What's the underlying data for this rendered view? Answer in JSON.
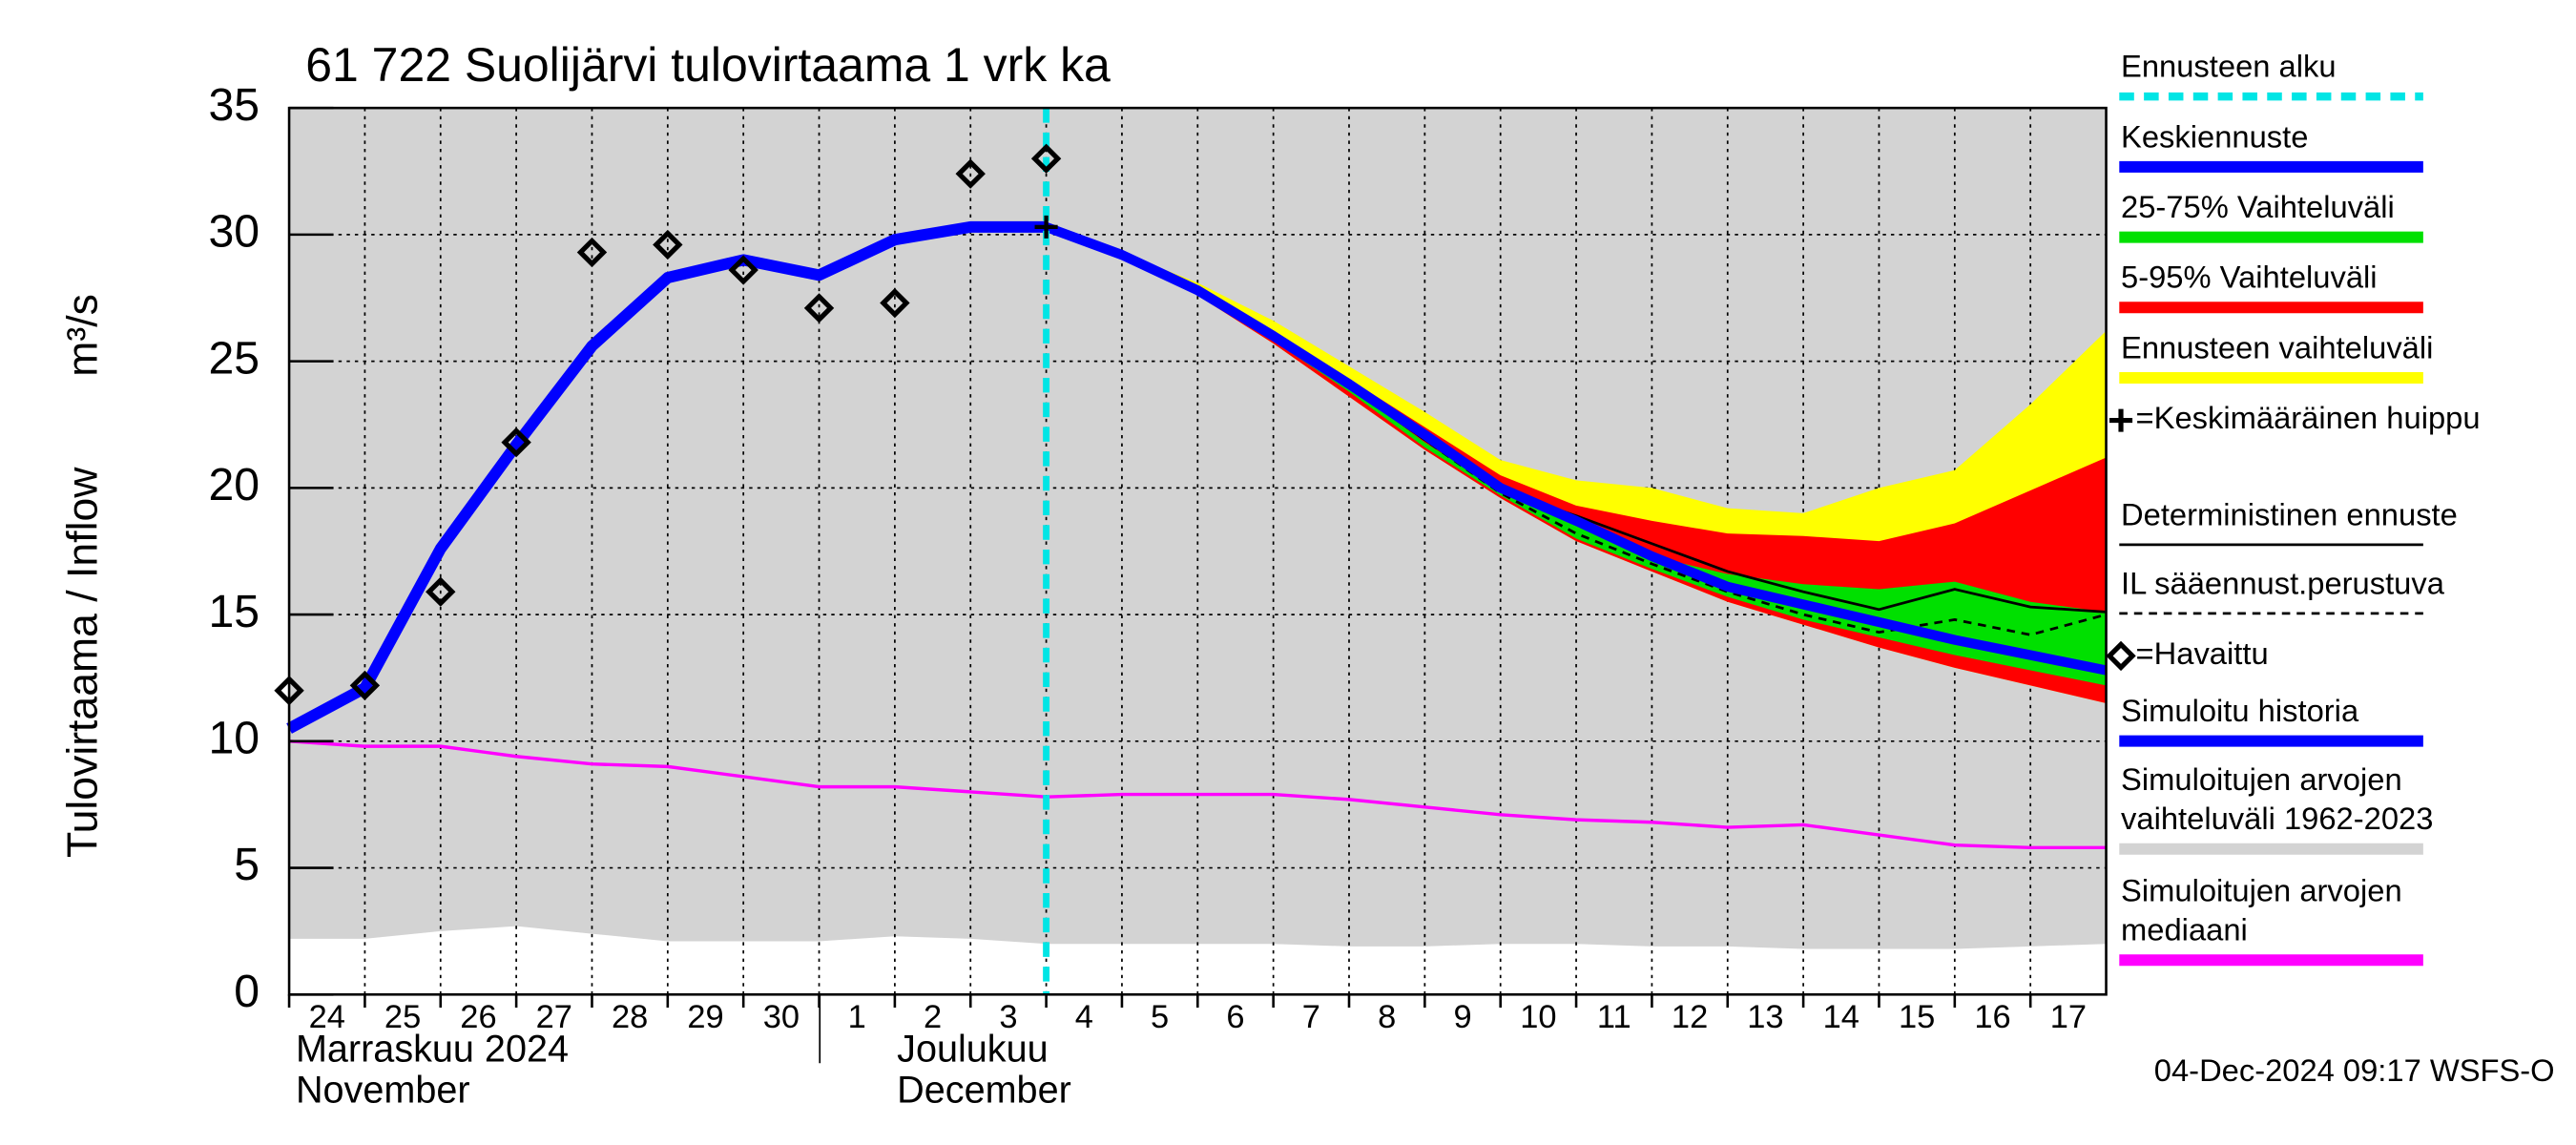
{
  "chart_data": {
    "type": "line",
    "title": "61 722 Suolijärvi tulovirtaama 1 vrk ka",
    "ylabel": "Tulovirtaama / Inflow",
    "yunit": "m³/s",
    "footer": "04-Dec-2024 09:17 WSFS-O",
    "month_labels": [
      [
        "Marraskuu 2024",
        "November"
      ],
      [
        "Joulukuu",
        "December"
      ]
    ],
    "x": [
      0,
      1,
      2,
      3,
      4,
      5,
      6,
      7,
      8,
      9,
      10,
      11,
      12,
      13,
      14,
      15,
      16,
      17,
      18,
      19,
      20,
      21,
      22,
      23,
      24
    ],
    "xlim": [
      0,
      24
    ],
    "xticks": [
      {
        "value": 0,
        "label": "24"
      },
      {
        "value": 1,
        "label": "25"
      },
      {
        "value": 2,
        "label": "26"
      },
      {
        "value": 3,
        "label": "27"
      },
      {
        "value": 4,
        "label": "28"
      },
      {
        "value": 5,
        "label": "29"
      },
      {
        "value": 6,
        "label": "30"
      },
      {
        "value": 7,
        "label": "1"
      },
      {
        "value": 8,
        "label": "2"
      },
      {
        "value": 9,
        "label": "3"
      },
      {
        "value": 10,
        "label": "4"
      },
      {
        "value": 11,
        "label": "5"
      },
      {
        "value": 12,
        "label": "6"
      },
      {
        "value": 13,
        "label": "7"
      },
      {
        "value": 14,
        "label": "8"
      },
      {
        "value": 15,
        "label": "9"
      },
      {
        "value": 16,
        "label": "10"
      },
      {
        "value": 17,
        "label": "11"
      },
      {
        "value": 18,
        "label": "12"
      },
      {
        "value": 19,
        "label": "13"
      },
      {
        "value": 20,
        "label": "14"
      },
      {
        "value": 21,
        "label": "15"
      },
      {
        "value": 22,
        "label": "16"
      },
      {
        "value": 23,
        "label": "17"
      }
    ],
    "ylim": [
      0,
      35
    ],
    "yticks": [
      0,
      5,
      10,
      15,
      20,
      25,
      30,
      35
    ],
    "grid": true,
    "series": [
      {
        "name": "Ennusteen alku",
        "color": "#00e5e5",
        "kind": "vline",
        "at": 10
      },
      {
        "name": "Keskiennuste",
        "color": "#0000ff",
        "kind": "line",
        "values": [
          null,
          null,
          null,
          null,
          null,
          null,
          null,
          null,
          null,
          null,
          30.3,
          29.2,
          27.8,
          26.0,
          24.1,
          22.1,
          20.0,
          18.7,
          17.3,
          16.1,
          15.4,
          14.7,
          14.0,
          13.4,
          12.8
        ]
      },
      {
        "name": "25-75% Vaihteluväli",
        "color": "#00e000",
        "kind": "band",
        "high": [
          null,
          null,
          null,
          null,
          null,
          null,
          null,
          null,
          null,
          null,
          30.3,
          29.2,
          27.8,
          26.0,
          24.0,
          21.8,
          19.9,
          18.5,
          17.3,
          16.6,
          16.2,
          16.0,
          16.3,
          15.5,
          15.1
        ],
        "low": [
          null,
          null,
          null,
          null,
          null,
          null,
          null,
          null,
          null,
          null,
          30.3,
          29.1,
          27.7,
          25.8,
          23.8,
          21.6,
          19.7,
          18.0,
          16.8,
          15.7,
          14.8,
          14.1,
          13.4,
          12.8,
          12.2
        ]
      },
      {
        "name": "5-95% Vaihteluväli",
        "color": "#ff0000",
        "kind": "band",
        "high": [
          null,
          null,
          null,
          null,
          null,
          null,
          null,
          null,
          null,
          null,
          30.3,
          29.2,
          27.9,
          26.2,
          24.3,
          22.4,
          20.5,
          19.3,
          18.7,
          18.2,
          18.1,
          17.9,
          18.6,
          19.9,
          21.2
        ],
        "low": [
          null,
          null,
          null,
          null,
          null,
          null,
          null,
          null,
          null,
          null,
          30.3,
          29.1,
          27.6,
          25.7,
          23.6,
          21.5,
          19.6,
          17.9,
          16.7,
          15.5,
          14.6,
          13.7,
          12.9,
          12.2,
          11.5
        ]
      },
      {
        "name": "Ennusteen vaihteluväli",
        "color": "#ffff00",
        "kind": "band",
        "high": [
          null,
          null,
          null,
          null,
          null,
          null,
          null,
          null,
          null,
          null,
          30.3,
          29.3,
          28.1,
          26.6,
          24.8,
          23.0,
          21.1,
          20.3,
          20.0,
          19.2,
          19.0,
          20.0,
          20.7,
          23.3,
          26.2
        ],
        "low": [
          null,
          null,
          null,
          null,
          null,
          null,
          null,
          null,
          null,
          null,
          30.3,
          29.1,
          27.6,
          25.7,
          23.6,
          21.5,
          19.6,
          17.9,
          16.7,
          15.5,
          14.6,
          13.7,
          12.9,
          12.2,
          11.5
        ]
      },
      {
        "name": "=Keskimääräinen huippu",
        "color": "#000000",
        "kind": "peak",
        "values": [
          null,
          null,
          null,
          null,
          null,
          null,
          null,
          null,
          null,
          null,
          30.3,
          null,
          null,
          null,
          null,
          null,
          null,
          null,
          null,
          null,
          null,
          null,
          null,
          null,
          null
        ]
      },
      {
        "name": "Deterministinen ennuste",
        "color": "#000000",
        "kind": "line",
        "values": [
          null,
          null,
          null,
          null,
          null,
          null,
          null,
          null,
          null,
          null,
          30.3,
          29.2,
          27.8,
          26.0,
          24.0,
          21.9,
          19.9,
          18.9,
          17.8,
          16.7,
          15.9,
          15.2,
          16.0,
          15.3,
          15.1
        ]
      },
      {
        "name": "IL sääennust.perustuva",
        "color": "#000000",
        "kind": "dashed",
        "values": [
          null,
          null,
          null,
          null,
          null,
          null,
          null,
          null,
          null,
          null,
          30.3,
          29.2,
          27.8,
          26.0,
          24.0,
          21.9,
          19.8,
          18.2,
          17.0,
          15.9,
          15.0,
          14.3,
          14.8,
          14.2,
          15.0
        ]
      },
      {
        "name": "=Havaittu",
        "color": "#000000",
        "kind": "marker",
        "values": [
          12.0,
          12.2,
          15.9,
          21.8,
          29.3,
          29.6,
          28.6,
          27.1,
          27.3,
          32.4,
          33.0,
          null,
          null,
          null,
          null,
          null,
          null,
          null,
          null,
          null,
          null,
          null,
          null,
          null,
          null
        ]
      },
      {
        "name": "Simuloitu historia",
        "color": "#0000ff",
        "kind": "line",
        "values": [
          10.5,
          12.1,
          17.6,
          21.7,
          25.6,
          28.3,
          29.0,
          28.4,
          29.8,
          30.3,
          30.3,
          null,
          null,
          null,
          null,
          null,
          null,
          null,
          null,
          null,
          null,
          null,
          null,
          null,
          null
        ]
      },
      {
        "name": "Simuloitujen arvojen vaihteluväli 1962-2023",
        "color": "#d3d3d3",
        "kind": "band",
        "high": [
          35,
          35,
          35,
          35,
          35,
          35,
          35,
          35,
          35,
          35,
          35,
          35,
          35,
          35,
          35,
          35,
          35,
          35,
          35,
          35,
          35,
          35,
          35,
          35,
          35
        ],
        "low": [
          2.2,
          2.2,
          2.5,
          2.7,
          2.4,
          2.1,
          2.1,
          2.1,
          2.3,
          2.2,
          2.0,
          2.0,
          2.0,
          2.0,
          1.9,
          1.9,
          2.0,
          2.0,
          1.9,
          1.9,
          1.8,
          1.8,
          1.8,
          1.9,
          2.0
        ]
      },
      {
        "name": "Simuloitujen arvojen mediaani",
        "color": "#ff00ff",
        "kind": "line",
        "values": [
          10.0,
          9.8,
          9.8,
          9.4,
          9.1,
          9.0,
          8.6,
          8.2,
          8.2,
          8.0,
          7.8,
          7.9,
          7.9,
          7.9,
          7.7,
          7.4,
          7.1,
          6.9,
          6.8,
          6.6,
          6.7,
          6.3,
          5.9,
          5.8,
          5.8
        ]
      }
    ]
  }
}
